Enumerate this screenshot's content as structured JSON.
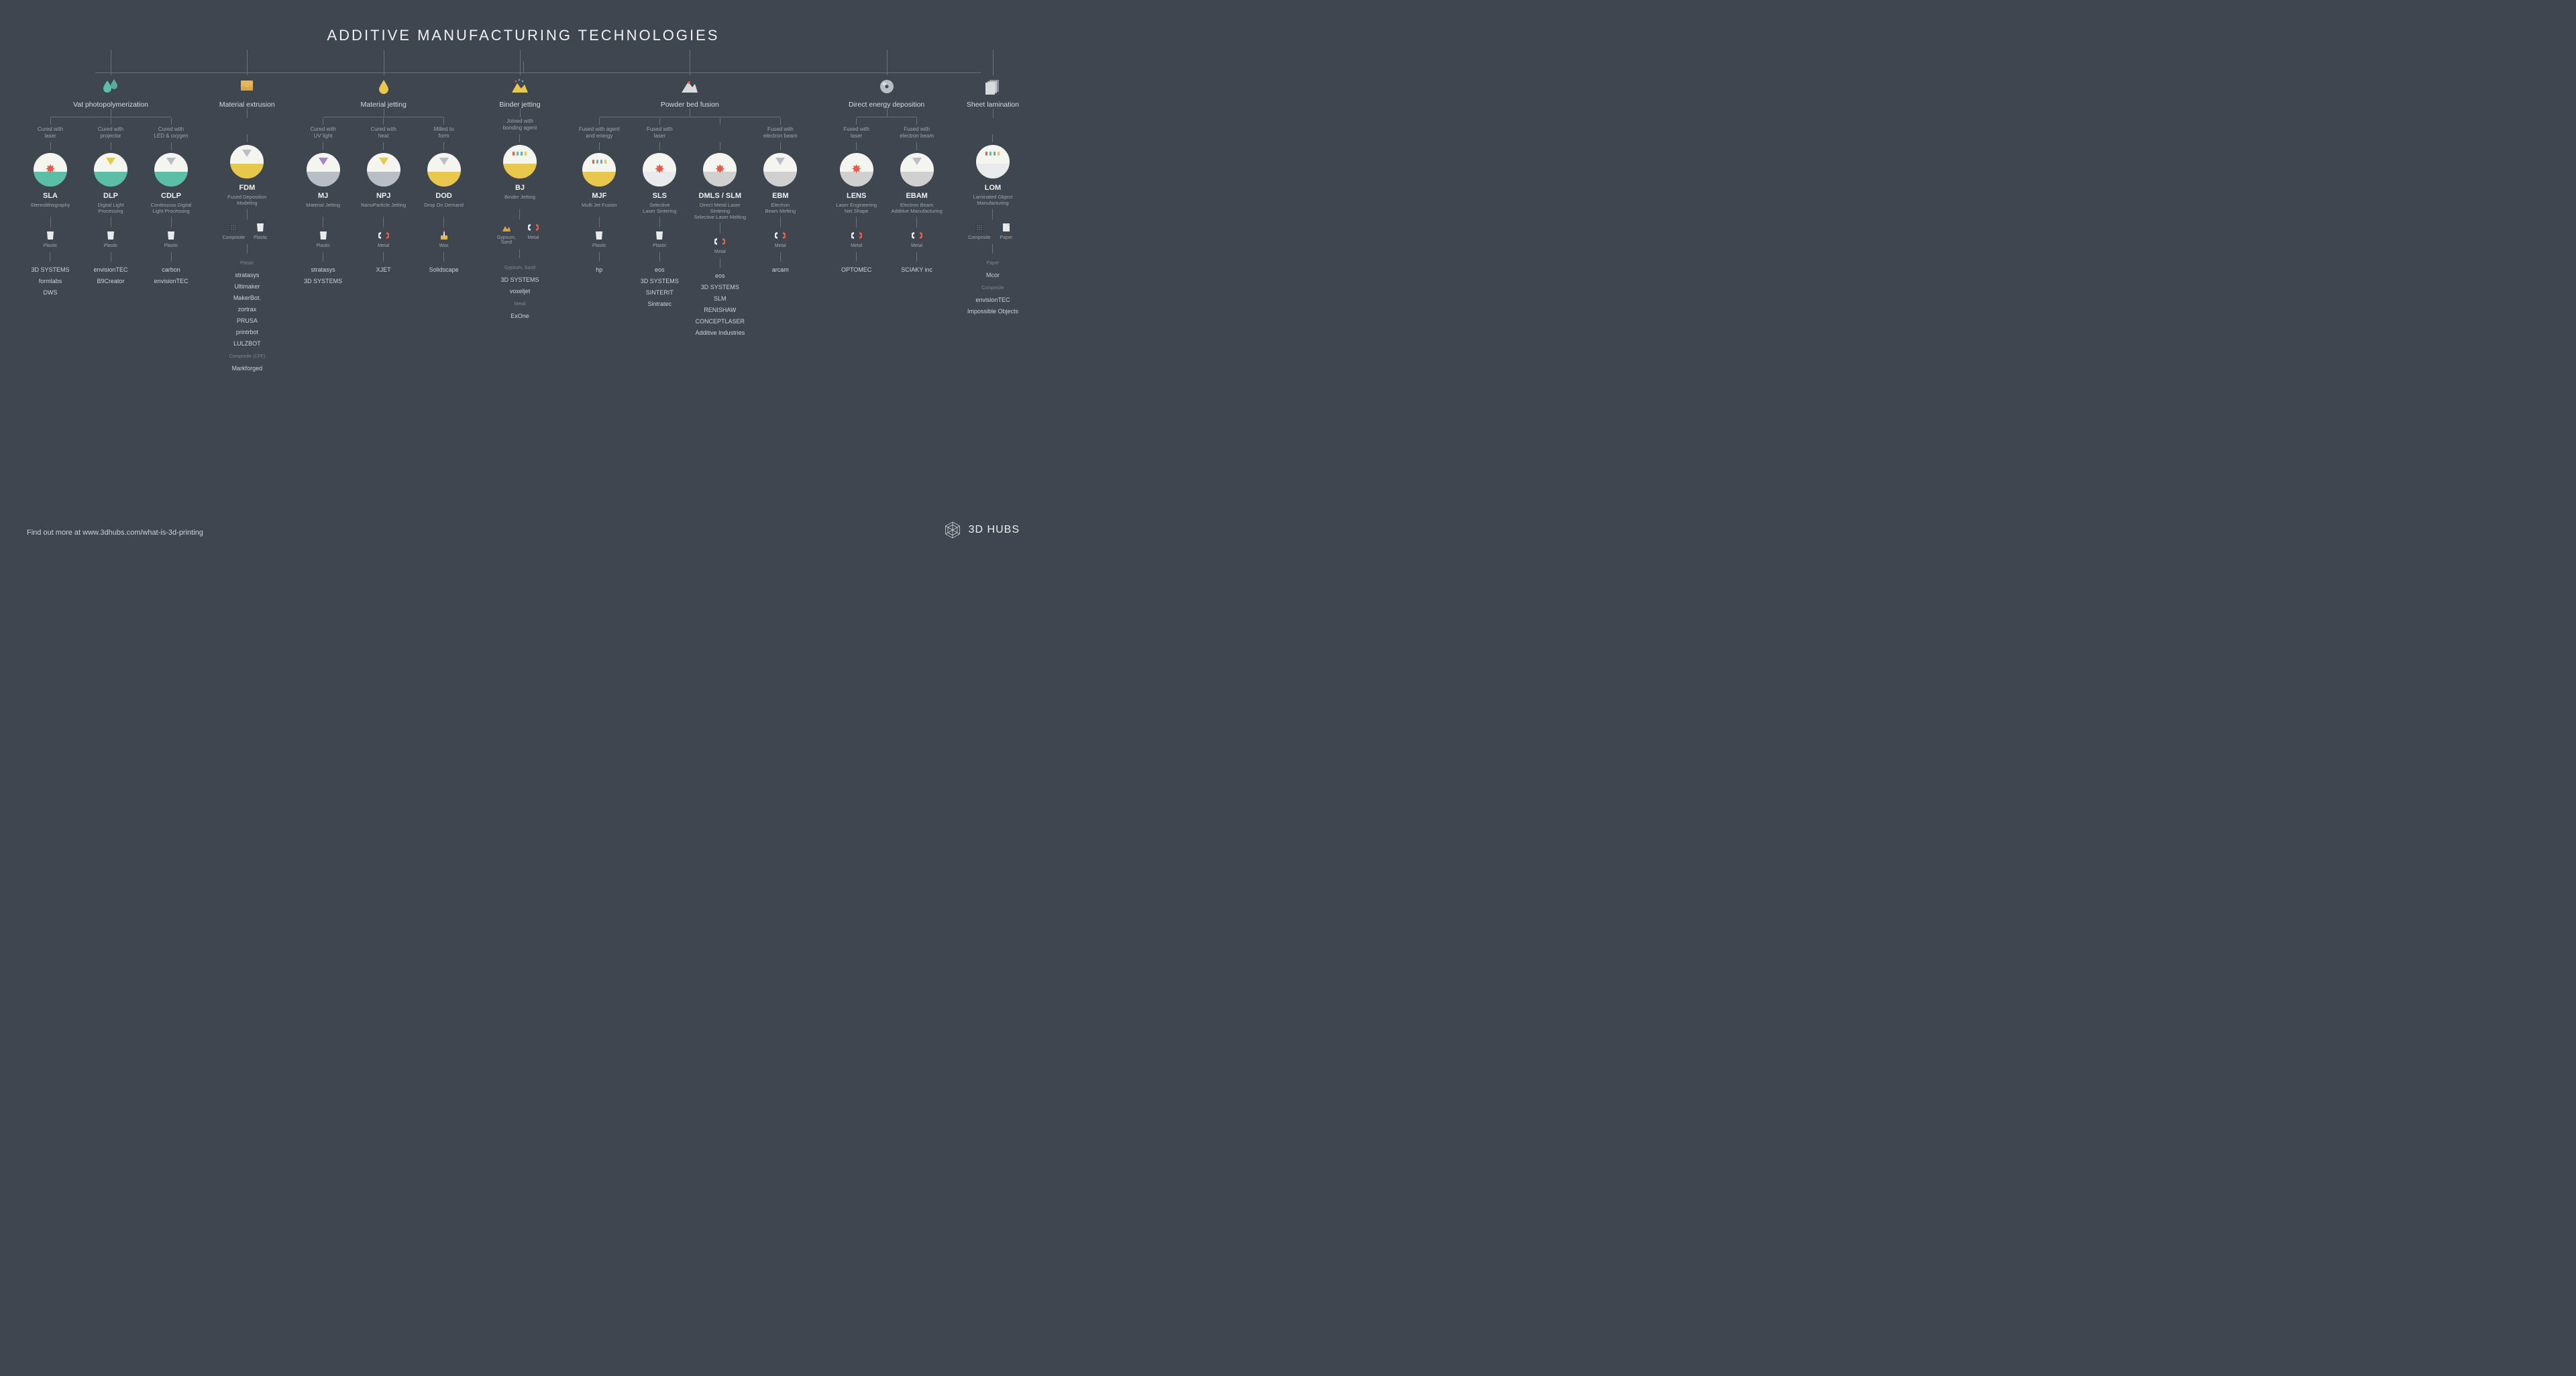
{
  "title": "ADDITIVE MANUFACTURING TECHNOLOGIES",
  "footer_text": "Find out more at www.3dhubs.com/what-is-3d-printing",
  "brand": "3D HUBS",
  "colors": {
    "bg": "#3e4650",
    "line": "#6a7179",
    "text": "#e8e8e8",
    "muted": "#9fa5ab",
    "circle_bg": "#f5f5f0",
    "icon_teal": "#5abfa5",
    "icon_orange": "#e8b657",
    "icon_blue": "#6aa3c7",
    "icon_yellow": "#e8c74a",
    "icon_red": "#e85a4a",
    "icon_gray": "#b8bec4",
    "icon_purple": "#a584c7"
  },
  "categories": [
    {
      "key": "vat",
      "label": "Vat photopolymerization",
      "icon": "drops",
      "icon_color": "#5abfa5",
      "subs": [
        {
          "method": "Cured with\nlaser",
          "acronym": "SLA",
          "fullname": "Stereolithography",
          "circle": {
            "liquid": "#5abfa5",
            "effect": "star",
            "effect_color": "#e85a4a"
          },
          "materials": [
            {
              "kind": "plastic",
              "label": "Plastic"
            }
          ],
          "vendors": [
            "3D SYSTEMS",
            "formlabs",
            "DWS"
          ]
        },
        {
          "method": "Cured with\nprojector",
          "acronym": "DLP",
          "fullname": "Digital Light\nProcessing",
          "circle": {
            "liquid": "#5abfa5",
            "nozzle": "#e8c74a"
          },
          "materials": [
            {
              "kind": "plastic",
              "label": "Plastic"
            }
          ],
          "vendors": [
            "envisionTEC",
            "B9Creator"
          ]
        },
        {
          "method": "Cured with\nLED & oxygen",
          "acronym": "CDLP",
          "fullname": "Continuous Digital\nLight Processing",
          "circle": {
            "liquid": "#5abfa5",
            "nozzle": "#b8bec4"
          },
          "materials": [
            {
              "kind": "plastic",
              "label": "Plastic"
            }
          ],
          "vendors": [
            "carbon",
            "envisionTEC"
          ]
        }
      ]
    },
    {
      "key": "ext",
      "label": "Material extrusion",
      "icon": "extruder",
      "icon_color": "#e8b657",
      "subs": [
        {
          "method": "",
          "acronym": "FDM",
          "fullname": "Fused Deposition\nModeling",
          "circle": {
            "liquid": "#e8c74a",
            "nozzle": "#b8bec4"
          },
          "materials": [
            {
              "kind": "composite",
              "label": "Composite"
            },
            {
              "kind": "plastic",
              "label": "Plastic"
            }
          ],
          "vendor_groups": [
            {
              "cat": "Plastic",
              "items": [
                "stratasys",
                "Ultimaker",
                "MakerBot.",
                "zortrax",
                "PRUSA",
                "printrbot",
                "LULZBOT"
              ]
            },
            {
              "cat": "Composite (CFF)",
              "items": [
                "Markforged"
              ]
            }
          ]
        }
      ]
    },
    {
      "key": "mj",
      "label": "Material jetting",
      "icon": "drop",
      "icon_color": "#e8c74a",
      "subs": [
        {
          "method": "Cured with\nUV light",
          "acronym": "MJ",
          "fullname": "Material Jetting",
          "circle": {
            "liquid": "#b8bec4",
            "nozzle": "#a584c7"
          },
          "materials": [
            {
              "kind": "plastic",
              "label": "Plastic"
            }
          ],
          "vendors": [
            "stratasys",
            "3D SYSTEMS"
          ]
        },
        {
          "method": "Cured with\nheat",
          "acronym": "NPJ",
          "fullname": "NanoParticle Jetting",
          "circle": {
            "liquid": "#b8bec4",
            "nozzle": "#e8c74a"
          },
          "materials": [
            {
              "kind": "metal",
              "label": "Metal"
            }
          ],
          "vendors": [
            "XJET"
          ]
        },
        {
          "method": "Milled to\nform",
          "acronym": "DOD",
          "fullname": "Drop On Demand",
          "circle": {
            "liquid": "#e8c74a",
            "nozzle": "#b8bec4"
          },
          "materials": [
            {
              "kind": "wax",
              "label": "Wax"
            }
          ],
          "vendors": [
            "Solidscape"
          ]
        }
      ]
    },
    {
      "key": "bj",
      "label": "Binder jetting",
      "icon": "pile",
      "icon_color": "#e8c74a",
      "subs": [
        {
          "method": "Joined with\nbonding agent",
          "acronym": "BJ",
          "fullname": "Binder Jetting",
          "circle": {
            "liquid": "#e8c74a",
            "multi": true
          },
          "materials": [
            {
              "kind": "sand",
              "label": "Gypsum,\nSand"
            },
            {
              "kind": "metal",
              "label": "Metal"
            }
          ],
          "vendor_groups": [
            {
              "cat": "Gypsum, Sand",
              "items": [
                "3D SYSTEMS",
                "voxeljet"
              ]
            },
            {
              "cat": "Metal",
              "items": [
                "ExOne"
              ]
            }
          ]
        }
      ]
    },
    {
      "key": "pbf",
      "label": "Powder bed fusion",
      "icon": "mountain",
      "icon_color": "#d8dadc",
      "subs": [
        {
          "method": "Fused with agent\nand energy",
          "acronym": "MJF",
          "fullname": "Multi Jet Fusion",
          "circle": {
            "liquid": "#e8c74a",
            "multi": true
          },
          "materials": [
            {
              "kind": "plastic",
              "label": "Plastic"
            }
          ],
          "vendors": [
            "hp"
          ]
        },
        {
          "method": "Fused with\nlaser",
          "acronym": "SLS",
          "fullname": "Selective\nLaser Sintering",
          "circle": {
            "liquid": "#e8eaec",
            "effect": "star",
            "effect_color": "#e85a4a"
          },
          "materials": [
            {
              "kind": "plastic",
              "label": "Plastic"
            }
          ],
          "vendors": [
            "eos",
            "3D SYSTEMS",
            "SINTERIT",
            "Sintratec"
          ]
        },
        {
          "method": "",
          "acronym": "DMLS / SLM",
          "fullname": "Direct Metal Laser Sintering\nSelective Laser Melting",
          "circle": {
            "liquid": "#d0d0d0",
            "effect": "star",
            "effect_color": "#e85a4a"
          },
          "materials": [
            {
              "kind": "metal",
              "label": "Metal"
            }
          ],
          "vendors": [
            "eos",
            "3D SYSTEMS",
            "SLM",
            "RENISHAW",
            "CONCEPTLASER",
            "Additive Industries"
          ],
          "parent": "Fused with\nlaser"
        },
        {
          "method": "Fused with\nelectron beam",
          "acronym": "EBM",
          "fullname": "Electron\nBeam Melting",
          "circle": {
            "liquid": "#d0d0d0",
            "nozzle": "#b8bec4"
          },
          "materials": [
            {
              "kind": "metal",
              "label": "Metal"
            }
          ],
          "vendors": [
            "arcam"
          ]
        }
      ]
    },
    {
      "key": "ded",
      "label": "Direct energy deposition",
      "icon": "disc",
      "icon_color": "#b8bec4",
      "subs": [
        {
          "method": "Fused with\nlaser",
          "acronym": "LENS",
          "fullname": "Laser Engineering\nNet Shape",
          "circle": {
            "liquid": "#d0d0d0",
            "effect": "star",
            "effect_color": "#e85a4a"
          },
          "materials": [
            {
              "kind": "metal",
              "label": "Metal"
            }
          ],
          "vendors": [
            "OPTOMEC"
          ]
        },
        {
          "method": "Fused with\nelectron beam",
          "acronym": "EBAM",
          "fullname": "Electron Beam\nAdditive Manufacturing",
          "circle": {
            "liquid": "#d0d0d0",
            "nozzle": "#b8bec4"
          },
          "materials": [
            {
              "kind": "metal",
              "label": "Metal"
            }
          ],
          "vendors": [
            "SCIAKY inc"
          ]
        }
      ]
    },
    {
      "key": "sl",
      "label": "Sheet lamination",
      "icon": "sheets",
      "icon_color": "#d8dadc",
      "subs": [
        {
          "method": "",
          "no_method_row": true,
          "acronym": "LOM",
          "fullname": "Laminated Object\nManufacturing",
          "circle": {
            "liquid": "#e8eaec",
            "multi": true
          },
          "materials": [
            {
              "kind": "composite",
              "label": "Composite"
            },
            {
              "kind": "paper",
              "label": "Paper"
            }
          ],
          "vendor_groups": [
            {
              "cat": "Paper",
              "items": [
                "Mcor"
              ]
            },
            {
              "cat": "Composite",
              "items": [
                "envisionTEC",
                "Impossible Objects"
              ]
            }
          ]
        }
      ]
    }
  ]
}
